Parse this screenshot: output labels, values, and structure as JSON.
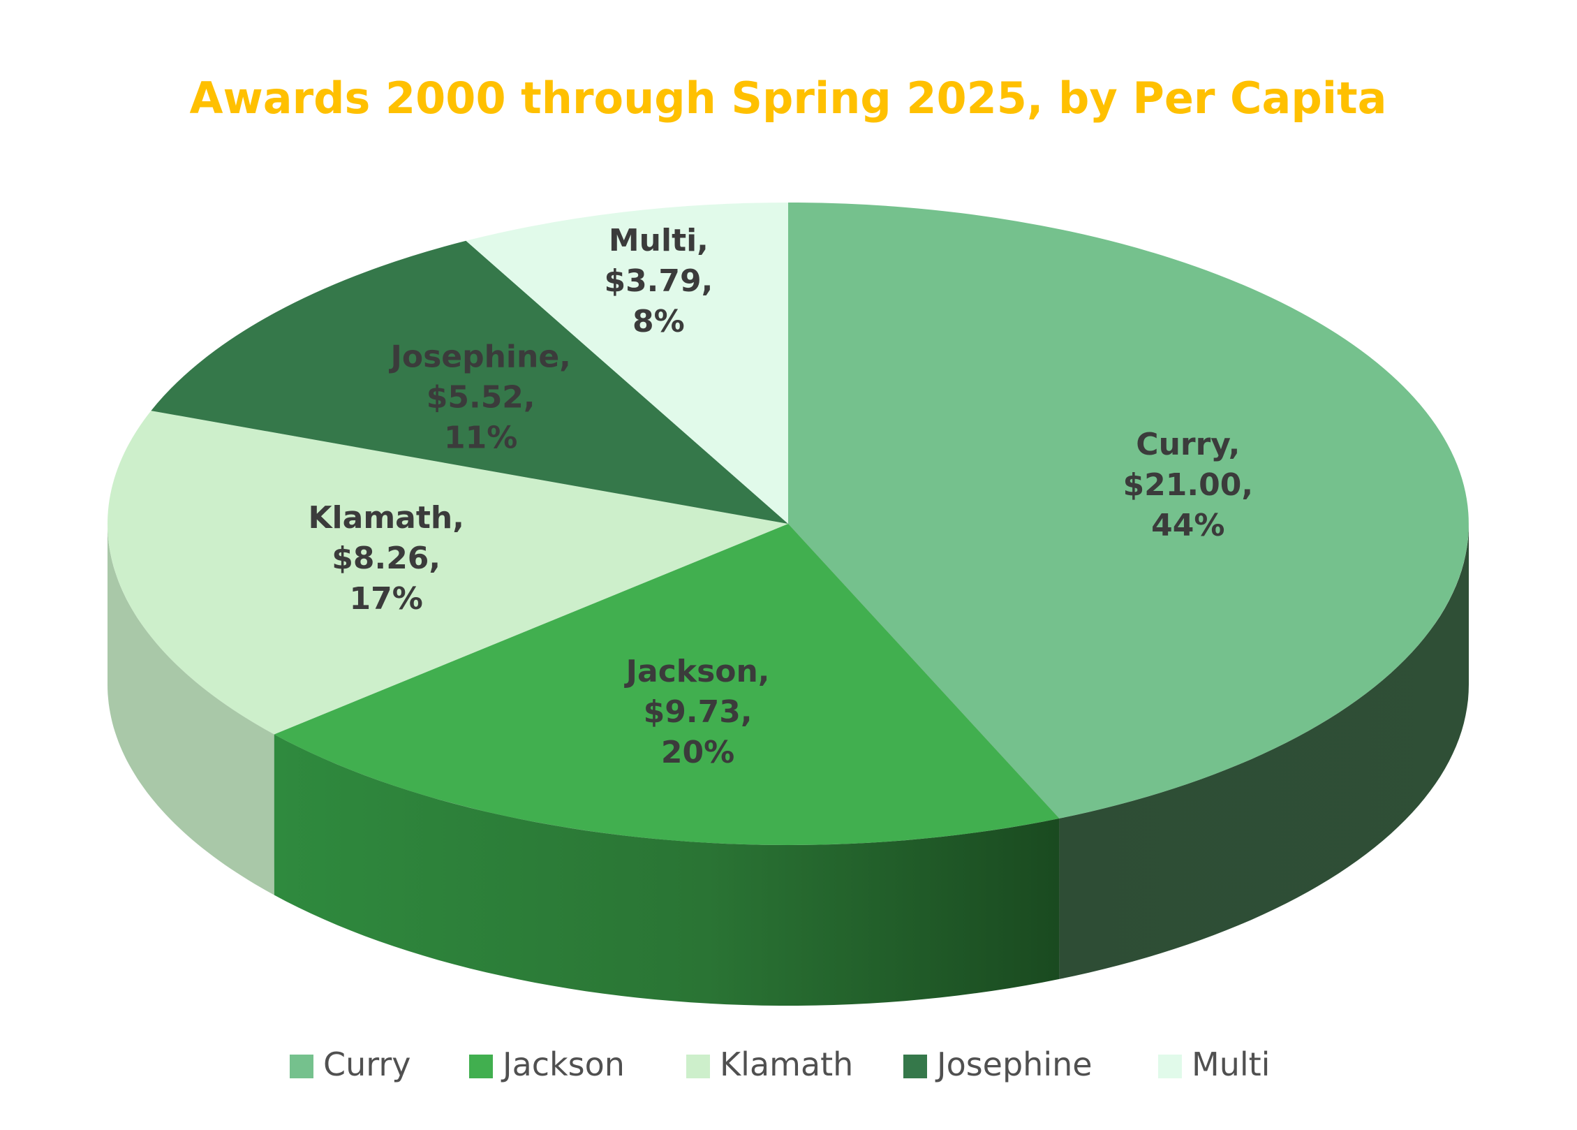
{
  "chart_data": {
    "type": "pie",
    "title": "Awards 2000 through Spring 2025, by Per Capita",
    "title_color": "#FFC000",
    "legend_position": "bottom",
    "three_d": true,
    "slices": [
      {
        "name": "Curry",
        "value": 21.0,
        "value_label": "$21.00,",
        "percent_label": "44%",
        "color": "#75C18D",
        "side_color": "#2F4F36"
      },
      {
        "name": "Jackson",
        "value": 9.73,
        "value_label": "$9.73,",
        "percent_label": "20%",
        "color": "#41AF4F",
        "side_color": "#2C7A38"
      },
      {
        "name": "Klamath",
        "value": 8.26,
        "value_label": "$8.26,",
        "percent_label": "17%",
        "color": "#CDEFCB",
        "side_color": "#A9C8A8"
      },
      {
        "name": "Josephine",
        "value": 5.52,
        "value_label": "$5.52,",
        "percent_label": "11%",
        "color": "#35784A",
        "side_color": "#24553A"
      },
      {
        "name": "Multi",
        "value": 3.79,
        "value_label": "$3.79,",
        "percent_label": "8%",
        "color": "#E1FAEA",
        "side_color": "#BBD8C4"
      }
    ]
  }
}
